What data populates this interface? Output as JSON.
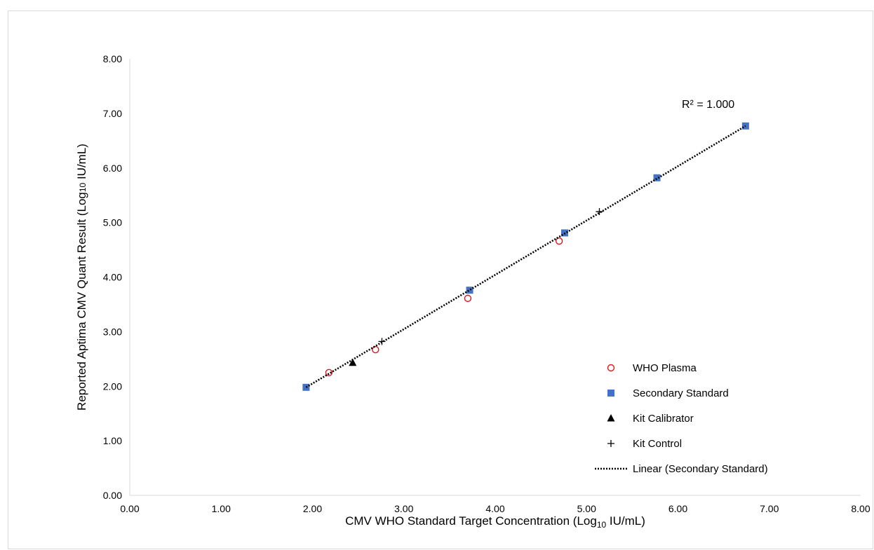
{
  "chart_data": {
    "type": "scatter",
    "title": "",
    "xlabel": {
      "pre": "CMV WHO Standard Target Concentration (Log",
      "sub": "10",
      "post": " IU/mL)"
    },
    "ylabel": {
      "pre": "Reported Aptima CMV Quant Result (Log",
      "sub": "10",
      "post": " IU/mL)"
    },
    "xlim": [
      0,
      8
    ],
    "ylim": [
      0,
      8
    ],
    "x_ticks": [
      "0.00",
      "1.00",
      "2.00",
      "3.00",
      "4.00",
      "5.00",
      "6.00",
      "7.00",
      "8.00"
    ],
    "y_ticks": [
      "0.00",
      "1.00",
      "2.00",
      "3.00",
      "4.00",
      "5.00",
      "6.00",
      "7.00",
      "8.00"
    ],
    "grid": false,
    "legend_position": "bottom-right",
    "series": [
      {
        "name": "WHO Plasma",
        "marker": "open-circle",
        "color": "#e0141e",
        "points": [
          [
            2.18,
            2.25
          ],
          [
            2.69,
            2.67
          ],
          [
            3.7,
            3.61
          ],
          [
            4.7,
            4.66
          ]
        ]
      },
      {
        "name": "Secondary Standard",
        "marker": "square",
        "color": "#4472c4",
        "points": [
          [
            1.93,
            1.98
          ],
          [
            3.72,
            3.76
          ],
          [
            4.76,
            4.81
          ],
          [
            5.77,
            5.82
          ],
          [
            6.74,
            6.77
          ]
        ]
      },
      {
        "name": "Kit Calibrator",
        "marker": "triangle",
        "color": "#000000",
        "points": [
          [
            2.44,
            2.43
          ]
        ]
      },
      {
        "name": "Kit Control",
        "marker": "plus",
        "color": "#000000",
        "points": [
          [
            2.76,
            2.82
          ],
          [
            5.14,
            5.2
          ]
        ]
      }
    ],
    "trendline": {
      "name": "Linear (Secondary Standard)",
      "style": "dotted",
      "color": "#000000",
      "from": [
        1.93,
        1.98
      ],
      "to": [
        6.74,
        6.77
      ]
    },
    "annotation": "R² = 1.000"
  }
}
